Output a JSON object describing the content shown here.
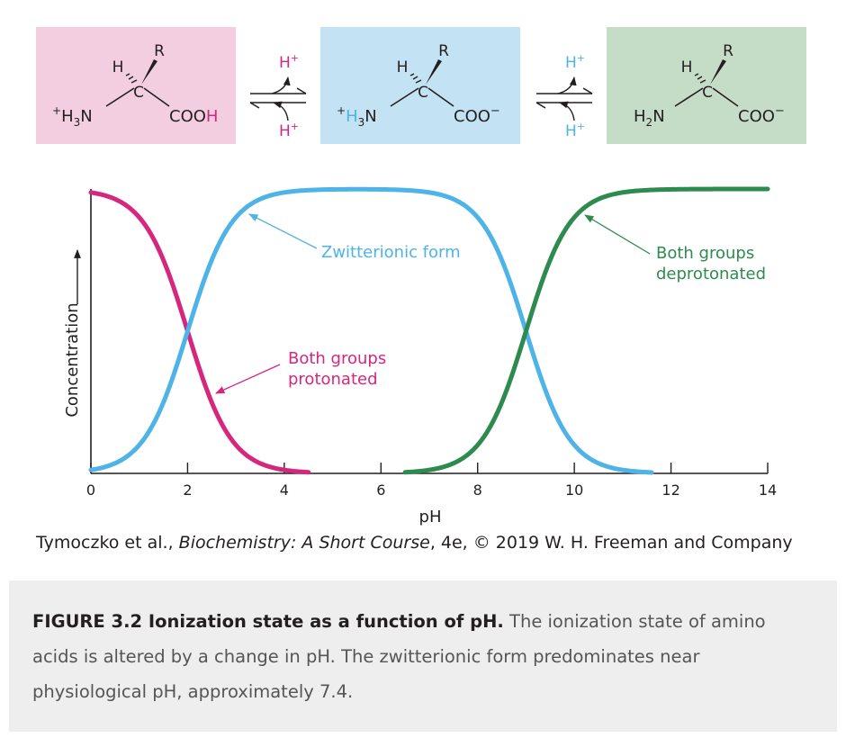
{
  "colors": {
    "magenta": "#d6277f",
    "blue": "#4eb3e6",
    "green": "#2e8b4f",
    "pink_panel": "#f3cde0",
    "blue_panel": "#c3e3f5",
    "green_panel": "#c5dcc7",
    "caption_bg": "#eeeeee"
  },
  "structures": [
    {
      "h": "H",
      "r": "R",
      "c": "C",
      "left_group": "+H3N",
      "right_group": "COOH"
    },
    {
      "h": "H",
      "r": "R",
      "c": "C",
      "left_group": "+H3N",
      "right_group": "COO−"
    },
    {
      "h": "H",
      "r": "R",
      "c": "C",
      "left_group": "H2N",
      "right_group": "COO−"
    }
  ],
  "equilibria": [
    {
      "top": "H+",
      "bottom": "H+"
    },
    {
      "top": "H+",
      "bottom": "H+"
    }
  ],
  "chart_data": {
    "type": "line",
    "title": "",
    "xlabel": "pH",
    "ylabel": "Concentration",
    "xlim": [
      0,
      14
    ],
    "ylim": [
      0,
      1
    ],
    "x_ticks": [
      0,
      2,
      4,
      6,
      8,
      10,
      12,
      14
    ],
    "grid": false,
    "series": [
      {
        "name": "Both groups protonated",
        "color": "#d6277f",
        "x_range": [
          0,
          4.5
        ],
        "values_at": {
          "0": 1.0,
          "1": 0.92,
          "2": 0.5,
          "3": 0.08,
          "4": 0.01,
          "4.5": 0.0
        }
      },
      {
        "name": "Zwitterionic form",
        "color": "#4eb3e6",
        "x_range": [
          0,
          11.6
        ],
        "values_at": {
          "0": 0.0,
          "2": 0.5,
          "3": 0.92,
          "4": 1.0,
          "7": 1.0,
          "9": 0.5,
          "10": 0.08,
          "11.6": 0.0
        }
      },
      {
        "name": "Both groups deprotonated",
        "color": "#2e8b4f",
        "x_range": [
          6.5,
          14
        ],
        "values_at": {
          "6.5": 0.0,
          "8": 0.08,
          "9": 0.5,
          "10": 0.92,
          "11": 1.0,
          "14": 1.0
        }
      }
    ],
    "pK1": 2,
    "pK2": 9,
    "annotations": [
      {
        "text": "Zwitterionic form",
        "color": "#4eb3e6",
        "points_to_x": 3.3
      },
      {
        "text_lines": [
          "Both groups",
          "protonated"
        ],
        "color": "#d6277f",
        "points_to_x": 2.45
      },
      {
        "text_lines": [
          "Both groups",
          "deprotonated"
        ],
        "color": "#2e8b4f",
        "points_to_x": 10.2
      }
    ]
  },
  "credit": {
    "prefix": "Tymoczko et al., ",
    "title": "Biochemistry: A Short Course",
    "suffix": ", 4e, © 2019 W. H. Freeman and Company"
  },
  "caption": {
    "lead": "FIGURE 3.2 Ionization state as a function of pH.",
    "body": " The ionization state of amino acids is altered by a change in pH. The zwitterionic form predominates near physiological pH, approximately 7.4."
  }
}
